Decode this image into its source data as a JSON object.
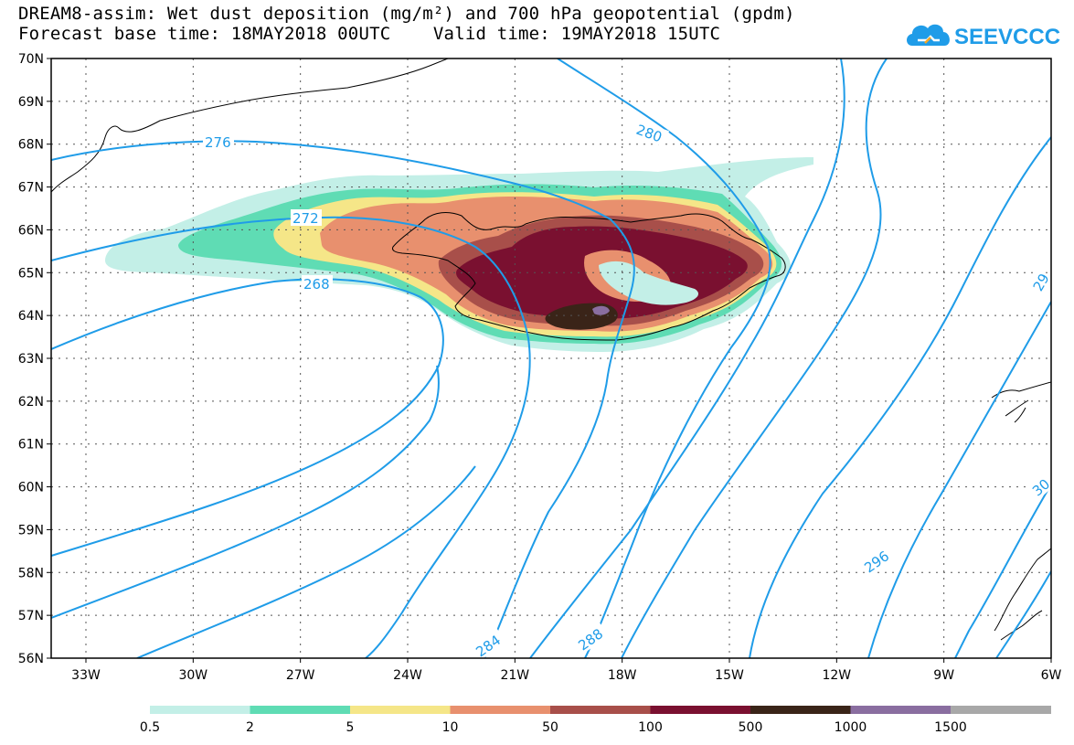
{
  "title": {
    "line1": "DREAM8-assim: Wet dust deposition (mg/m²) and 700 hPa geopotential (gpdm)",
    "line2": "Forecast base time: 18MAY2018 00UTC    Valid time: 19MAY2018 15UTC"
  },
  "logo": {
    "text": "SEEVCCC",
    "icon": "cloud-logo-icon",
    "color": "#1f9ce8"
  },
  "map": {
    "latitude_labels": [
      "70N",
      "69N",
      "68N",
      "67N",
      "66N",
      "65N",
      "64N",
      "63N",
      "62N",
      "61N",
      "60N",
      "59N",
      "58N",
      "57N",
      "56N"
    ],
    "longitude_labels": [
      "33W",
      "30W",
      "27W",
      "24W",
      "21W",
      "18W",
      "15W",
      "12W",
      "9W",
      "6W"
    ],
    "contour_labels": [
      "276",
      "272",
      "268",
      "280",
      "284",
      "288",
      "296",
      "29",
      "30"
    ],
    "contour_color": "#1f9ce8",
    "grid": "dotted"
  },
  "colorbar": {
    "labels": [
      "0.5",
      "2",
      "5",
      "10",
      "50",
      "100",
      "500",
      "1000",
      "1500"
    ],
    "colors": [
      "#c3efe7",
      "#5fdcb4",
      "#f5e688",
      "#e8906e",
      "#a84f4a",
      "#7a1030",
      "#3a2418",
      "#8a6ea0",
      "#a8a8a8"
    ]
  }
}
